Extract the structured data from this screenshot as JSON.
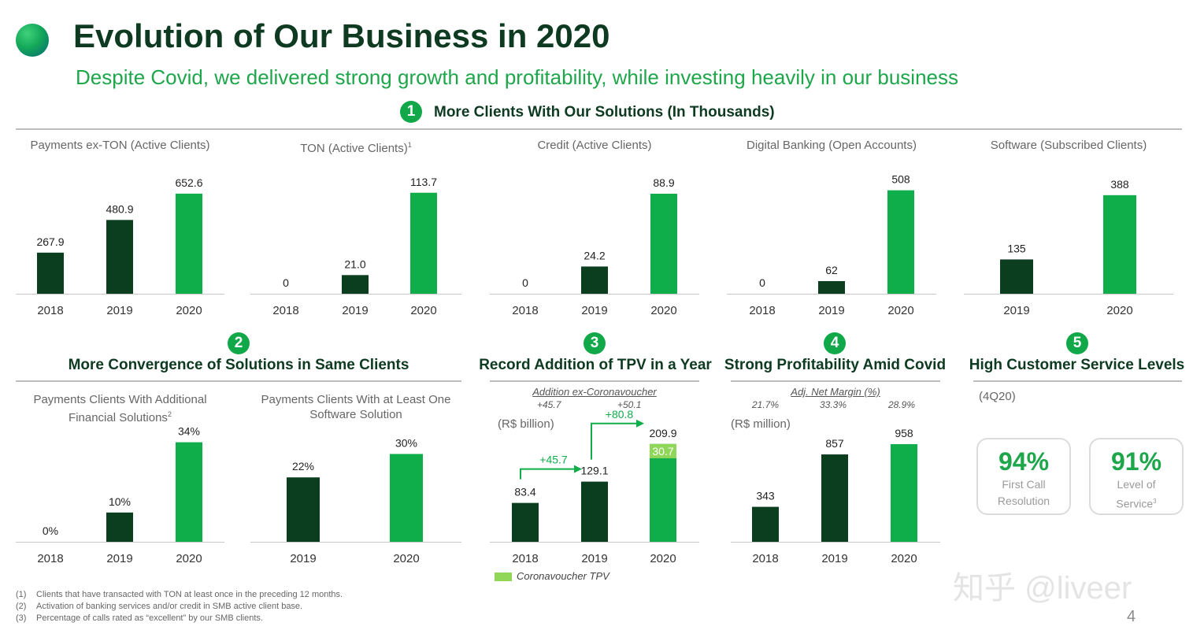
{
  "header": {
    "title": "Evolution of Our Business in 2020",
    "subtitle": "Despite Covid, we delivered strong growth and profitability, while investing heavily in our business"
  },
  "colors": {
    "dark": "#0b3d1f",
    "bright": "#0fae4a",
    "light": "#8fd659"
  },
  "sections": [
    {
      "num": "1",
      "title": "More Clients With Our Solutions (In Thousands)"
    },
    {
      "num": "2",
      "title": "More Convergence of Solutions in Same Clients"
    },
    {
      "num": "3",
      "title": "Record Addition of TPV in a Year"
    },
    {
      "num": "4",
      "title": "Strong Profitability Amid Covid"
    },
    {
      "num": "5",
      "title": "High Customer Service Levels"
    }
  ],
  "chart_data": [
    {
      "type": "bar",
      "title": "Payments ex-TON (Active Clients)",
      "categories": [
        "2018",
        "2019",
        "2020"
      ],
      "values": [
        267.9,
        480.9,
        652.6
      ],
      "labels": [
        "267.9",
        "480.9",
        "652.6"
      ],
      "ylim": [
        0,
        770
      ]
    },
    {
      "type": "bar",
      "title": "TON (Active Clients)",
      "title_sup": "1",
      "categories": [
        "2018",
        "2019",
        "2020"
      ],
      "values": [
        0,
        21.0,
        113.7
      ],
      "labels": [
        "0",
        "21.0",
        "113.7"
      ],
      "ylim": [
        0,
        133
      ]
    },
    {
      "type": "bar",
      "title": "Credit (Active Clients)",
      "categories": [
        "2018",
        "2019",
        "2020"
      ],
      "values": [
        0,
        24.2,
        88.9
      ],
      "labels": [
        "0",
        "24.2",
        "88.9"
      ],
      "ylim": [
        0,
        105
      ]
    },
    {
      "type": "bar",
      "title": "Digital Banking (Open Accounts)",
      "categories": [
        "2018",
        "2019",
        "2020"
      ],
      "values": [
        0,
        62,
        508
      ],
      "labels": [
        "0",
        "62",
        "508"
      ],
      "ylim": [
        0,
        580
      ]
    },
    {
      "type": "bar",
      "title": "Software (Subscribed Clients)",
      "categories": [
        "2019",
        "2020"
      ],
      "values": [
        135,
        388
      ],
      "labels": [
        "135",
        "388"
      ],
      "ylim": [
        0,
        465
      ]
    },
    {
      "type": "bar",
      "title": "Payments Clients With Additional Financial Solutions",
      "title_sup": "2",
      "categories": [
        "2018",
        "2019",
        "2020"
      ],
      "values": [
        0,
        10,
        34
      ],
      "labels": [
        "0%",
        "10%",
        "34%"
      ],
      "ylim": [
        0,
        39
      ]
    },
    {
      "type": "bar",
      "title": "Payments Clients With at Least One Software Solution",
      "categories": [
        "2019",
        "2020"
      ],
      "values": [
        22,
        30
      ],
      "labels": [
        "22%",
        "30%"
      ],
      "ylim": [
        0,
        39
      ]
    },
    {
      "type": "bar",
      "title": "Record Addition of TPV in a Year",
      "unit": "(R$ billion)",
      "subheader": "Addition ex-Coronavoucher",
      "subheader_values": [
        "+45.7",
        "+50.1"
      ],
      "categories": [
        "2018",
        "2019",
        "2020"
      ],
      "values": [
        83.4,
        129.1,
        209.9
      ],
      "labels": [
        "83.4",
        "129.1",
        "209.9"
      ],
      "stacked_segment": {
        "category": "2020",
        "value": 30.7,
        "label": "30.7",
        "name": "Coronavoucher TPV"
      },
      "arrows": [
        "+45.7",
        "+80.8"
      ],
      "ylim": [
        0,
        245
      ]
    },
    {
      "type": "bar",
      "title": "Strong Profitability Amid Covid",
      "unit": "(R$ million)",
      "subheader": "Adj. Net Margin (%)",
      "subheader_values": [
        "21.7%",
        "33.3%",
        "28.9%"
      ],
      "categories": [
        "2018",
        "2019",
        "2020"
      ],
      "values": [
        343,
        857,
        958
      ],
      "labels": [
        "343",
        "857",
        "958"
      ],
      "ylim": [
        0,
        1120
      ]
    }
  ],
  "service": {
    "period": "(4Q20)",
    "kpis": [
      {
        "value": "94%",
        "label_line1": "First Call",
        "label_line2": "Resolution",
        "sup": ""
      },
      {
        "value": "91%",
        "label_line1": "Level of",
        "label_line2": "Service",
        "sup": "3"
      }
    ]
  },
  "footnotes": [
    {
      "n": "(1)",
      "text": "Clients that have transacted with TON at least once in the preceding 12 months."
    },
    {
      "n": "(2)",
      "text": "Activation of banking services and/or credit in SMB active client base."
    },
    {
      "n": "(3)",
      "text": "Percentage of calls rated as “excellent” by our SMB clients."
    }
  ],
  "watermark": "知乎 @liveer",
  "page_number": "4"
}
